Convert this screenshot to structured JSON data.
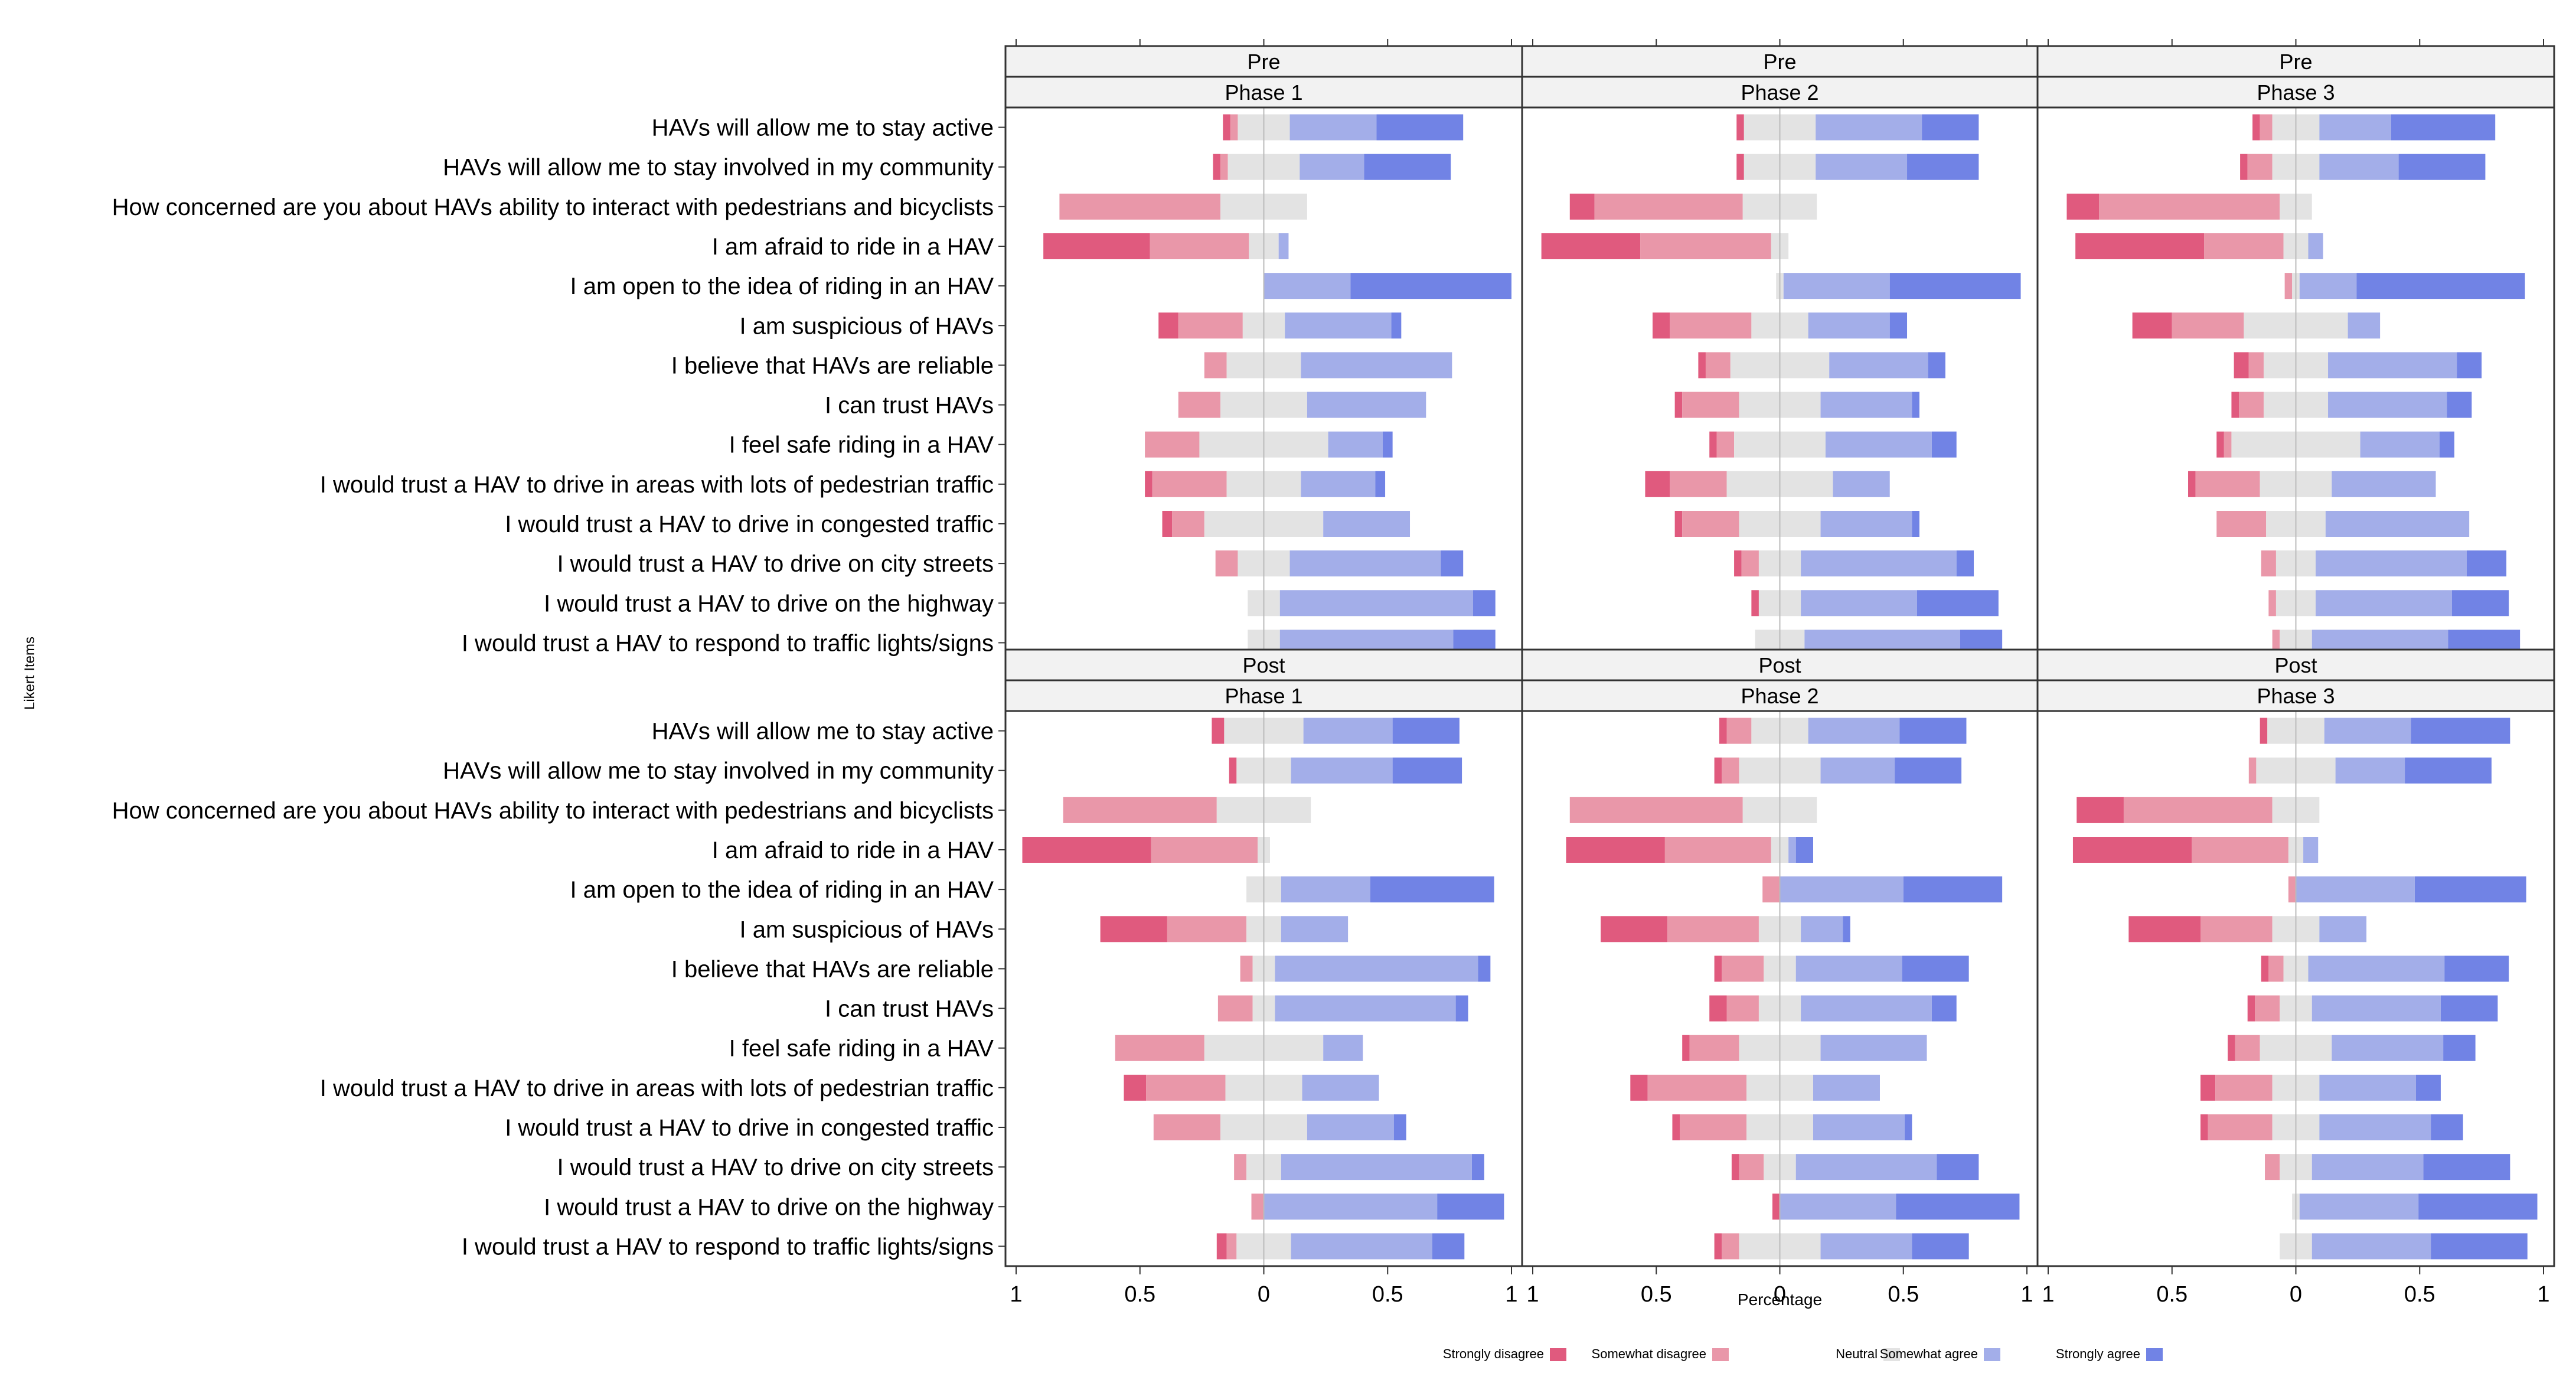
{
  "chart_data": {
    "type": "bar",
    "subtype": "diverging-stacked-likert",
    "xlabel": "Percentage",
    "ylabel": "Likert Items",
    "xlim": [
      -1,
      1
    ],
    "xticks": [
      -1,
      -0.5,
      0,
      0.5,
      1
    ],
    "xtick_labels": [
      "1",
      "0.5",
      "0",
      "0.5",
      "1"
    ],
    "legend_position": "bottom",
    "legend": [
      "Strongly disagree",
      "Somewhat disagree",
      "Neutral",
      "Somewhat agree",
      "Strongly agree"
    ],
    "colors": {
      "strongly_disagree": "#e05a7e",
      "somewhat_disagree": "#e997a9",
      "neutral": "#e3e3e3",
      "somewhat_agree": "#a3aee9",
      "strongly_agree": "#7183e5",
      "strip_bg": "#f2f2f2",
      "frame": "#333333",
      "text": "#000000"
    },
    "items": [
      "HAVs will allow me to stay active",
      "HAVs will allow me to stay involved in my community",
      "How concerned are you about HAVs ability to interact with pedestrians and bicyclists",
      "I am afraid to ride in a HAV",
      "I am open to the idea of riding in an HAV",
      "I am suspicious of HAVs",
      "I believe that HAVs are reliable",
      "I can trust HAVs",
      "I feel safe riding in a HAV",
      "I would trust a HAV to drive in areas with lots of pedestrian traffic",
      "I would trust a HAV to drive in congested traffic",
      "I would trust a HAV to drive on city streets",
      "I would trust a HAV to drive on the highway",
      "I would trust a HAV to respond to traffic lights/signs"
    ],
    "value_order": "[strongly disagree, somewhat disagree, neutral, somewhat agree, strongly agree] as proportions; neutral is split evenly around 0",
    "panels": [
      {
        "period": "Pre",
        "phase": "Phase 1",
        "values": [
          [
            0.03,
            0.03,
            0.21,
            0.35,
            0.35
          ],
          [
            0.03,
            0.03,
            0.29,
            0.26,
            0.35
          ],
          [
            0.0,
            0.65,
            0.35,
            0.0,
            0.0
          ],
          [
            0.43,
            0.4,
            0.12,
            0.04,
            0.0
          ],
          [
            0.0,
            0.0,
            0.0,
            0.35,
            0.65
          ],
          [
            0.08,
            0.26,
            0.17,
            0.43,
            0.04
          ],
          [
            0.0,
            0.09,
            0.3,
            0.61,
            0.0
          ],
          [
            0.0,
            0.17,
            0.35,
            0.48,
            0.0
          ],
          [
            0.0,
            0.22,
            0.52,
            0.22,
            0.04
          ],
          [
            0.03,
            0.3,
            0.3,
            0.3,
            0.04
          ],
          [
            0.04,
            0.13,
            0.48,
            0.35,
            0.0
          ],
          [
            0.0,
            0.09,
            0.21,
            0.61,
            0.09
          ],
          [
            0.0,
            0.0,
            0.13,
            0.78,
            0.09
          ],
          [
            0.0,
            0.0,
            0.13,
            0.7,
            0.17
          ]
        ]
      },
      {
        "period": "Pre",
        "phase": "Phase 2",
        "values": [
          [
            0.03,
            0.0,
            0.29,
            0.43,
            0.23
          ],
          [
            0.03,
            0.0,
            0.29,
            0.37,
            0.29
          ],
          [
            0.1,
            0.6,
            0.3,
            0.0,
            0.0
          ],
          [
            0.4,
            0.53,
            0.07,
            0.0,
            0.0
          ],
          [
            0.0,
            0.0,
            0.03,
            0.43,
            0.53
          ],
          [
            0.07,
            0.33,
            0.23,
            0.33,
            0.07
          ],
          [
            0.03,
            0.1,
            0.4,
            0.4,
            0.07
          ],
          [
            0.03,
            0.23,
            0.33,
            0.37,
            0.03
          ],
          [
            0.03,
            0.07,
            0.37,
            0.43,
            0.1
          ],
          [
            0.1,
            0.23,
            0.43,
            0.23,
            0.0
          ],
          [
            0.03,
            0.23,
            0.33,
            0.37,
            0.03
          ],
          [
            0.03,
            0.07,
            0.17,
            0.63,
            0.07
          ],
          [
            0.03,
            0.0,
            0.17,
            0.47,
            0.33
          ],
          [
            0.0,
            0.0,
            0.2,
            0.63,
            0.17
          ]
        ]
      },
      {
        "period": "Pre",
        "phase": "Phase 3",
        "values": [
          [
            0.03,
            0.05,
            0.19,
            0.29,
            0.42
          ],
          [
            0.03,
            0.1,
            0.19,
            0.32,
            0.35
          ],
          [
            0.13,
            0.73,
            0.13,
            0.0,
            0.0
          ],
          [
            0.52,
            0.32,
            0.1,
            0.06,
            0.0
          ],
          [
            0.0,
            0.03,
            0.03,
            0.23,
            0.68
          ],
          [
            0.16,
            0.29,
            0.42,
            0.13,
            0.0
          ],
          [
            0.06,
            0.06,
            0.26,
            0.52,
            0.1
          ],
          [
            0.03,
            0.1,
            0.26,
            0.48,
            0.1
          ],
          [
            0.03,
            0.03,
            0.52,
            0.32,
            0.06
          ],
          [
            0.03,
            0.26,
            0.29,
            0.42,
            0.0
          ],
          [
            0.0,
            0.2,
            0.24,
            0.58,
            0.0
          ],
          [
            0.0,
            0.06,
            0.16,
            0.61,
            0.16
          ],
          [
            0.0,
            0.03,
            0.16,
            0.55,
            0.23
          ],
          [
            0.0,
            0.03,
            0.13,
            0.55,
            0.29
          ]
        ]
      },
      {
        "period": "Post",
        "phase": "Phase 1",
        "values": [
          [
            0.05,
            0.0,
            0.32,
            0.36,
            0.27
          ],
          [
            0.03,
            0.0,
            0.22,
            0.41,
            0.28
          ],
          [
            0.0,
            0.62,
            0.38,
            0.0,
            0.0
          ],
          [
            0.52,
            0.43,
            0.05,
            0.0,
            0.0
          ],
          [
            0.0,
            0.0,
            0.14,
            0.36,
            0.5
          ],
          [
            0.27,
            0.32,
            0.14,
            0.27,
            0.0
          ],
          [
            0.0,
            0.05,
            0.09,
            0.82,
            0.05
          ],
          [
            0.0,
            0.14,
            0.09,
            0.73,
            0.05
          ],
          [
            0.0,
            0.36,
            0.48,
            0.16,
            0.0
          ],
          [
            0.09,
            0.32,
            0.31,
            0.31,
            0.0
          ],
          [
            0.0,
            0.27,
            0.35,
            0.35,
            0.05
          ],
          [
            0.0,
            0.05,
            0.14,
            0.77,
            0.05
          ],
          [
            0.0,
            0.05,
            0.0,
            0.7,
            0.27
          ],
          [
            0.04,
            0.04,
            0.22,
            0.57,
            0.13
          ]
        ]
      },
      {
        "period": "Post",
        "phase": "Phase 2",
        "values": [
          [
            0.03,
            0.1,
            0.23,
            0.37,
            0.27
          ],
          [
            0.03,
            0.07,
            0.33,
            0.3,
            0.27
          ],
          [
            0.0,
            0.7,
            0.3,
            0.0,
            0.0
          ],
          [
            0.4,
            0.43,
            0.07,
            0.03,
            0.07
          ],
          [
            0.0,
            0.07,
            0.0,
            0.5,
            0.4
          ],
          [
            0.27,
            0.37,
            0.17,
            0.17,
            0.03
          ],
          [
            0.03,
            0.17,
            0.13,
            0.43,
            0.27
          ],
          [
            0.07,
            0.13,
            0.17,
            0.53,
            0.1
          ],
          [
            0.03,
            0.2,
            0.33,
            0.43,
            0.0
          ],
          [
            0.07,
            0.4,
            0.27,
            0.27,
            0.0
          ],
          [
            0.03,
            0.27,
            0.27,
            0.37,
            0.03
          ],
          [
            0.03,
            0.1,
            0.13,
            0.57,
            0.17
          ],
          [
            0.03,
            0.0,
            0.0,
            0.47,
            0.5
          ],
          [
            0.03,
            0.07,
            0.33,
            0.37,
            0.23
          ]
        ]
      },
      {
        "period": "Post",
        "phase": "Phase 3",
        "values": [
          [
            0.03,
            0.0,
            0.23,
            0.35,
            0.4
          ],
          [
            0.0,
            0.03,
            0.32,
            0.28,
            0.35
          ],
          [
            0.19,
            0.6,
            0.19,
            0.0,
            0.0
          ],
          [
            0.48,
            0.39,
            0.06,
            0.06,
            0.0
          ],
          [
            0.0,
            0.03,
            0.0,
            0.48,
            0.45
          ],
          [
            0.29,
            0.29,
            0.19,
            0.19,
            0.0
          ],
          [
            0.03,
            0.06,
            0.1,
            0.55,
            0.26
          ],
          [
            0.03,
            0.1,
            0.13,
            0.52,
            0.23
          ],
          [
            0.03,
            0.1,
            0.29,
            0.45,
            0.13
          ],
          [
            0.06,
            0.23,
            0.19,
            0.39,
            0.1
          ],
          [
            0.03,
            0.26,
            0.19,
            0.45,
            0.13
          ],
          [
            0.0,
            0.06,
            0.13,
            0.45,
            0.35
          ],
          [
            0.0,
            0.0,
            0.03,
            0.48,
            0.48
          ],
          [
            0.0,
            0.0,
            0.13,
            0.48,
            0.39
          ]
        ]
      }
    ]
  }
}
